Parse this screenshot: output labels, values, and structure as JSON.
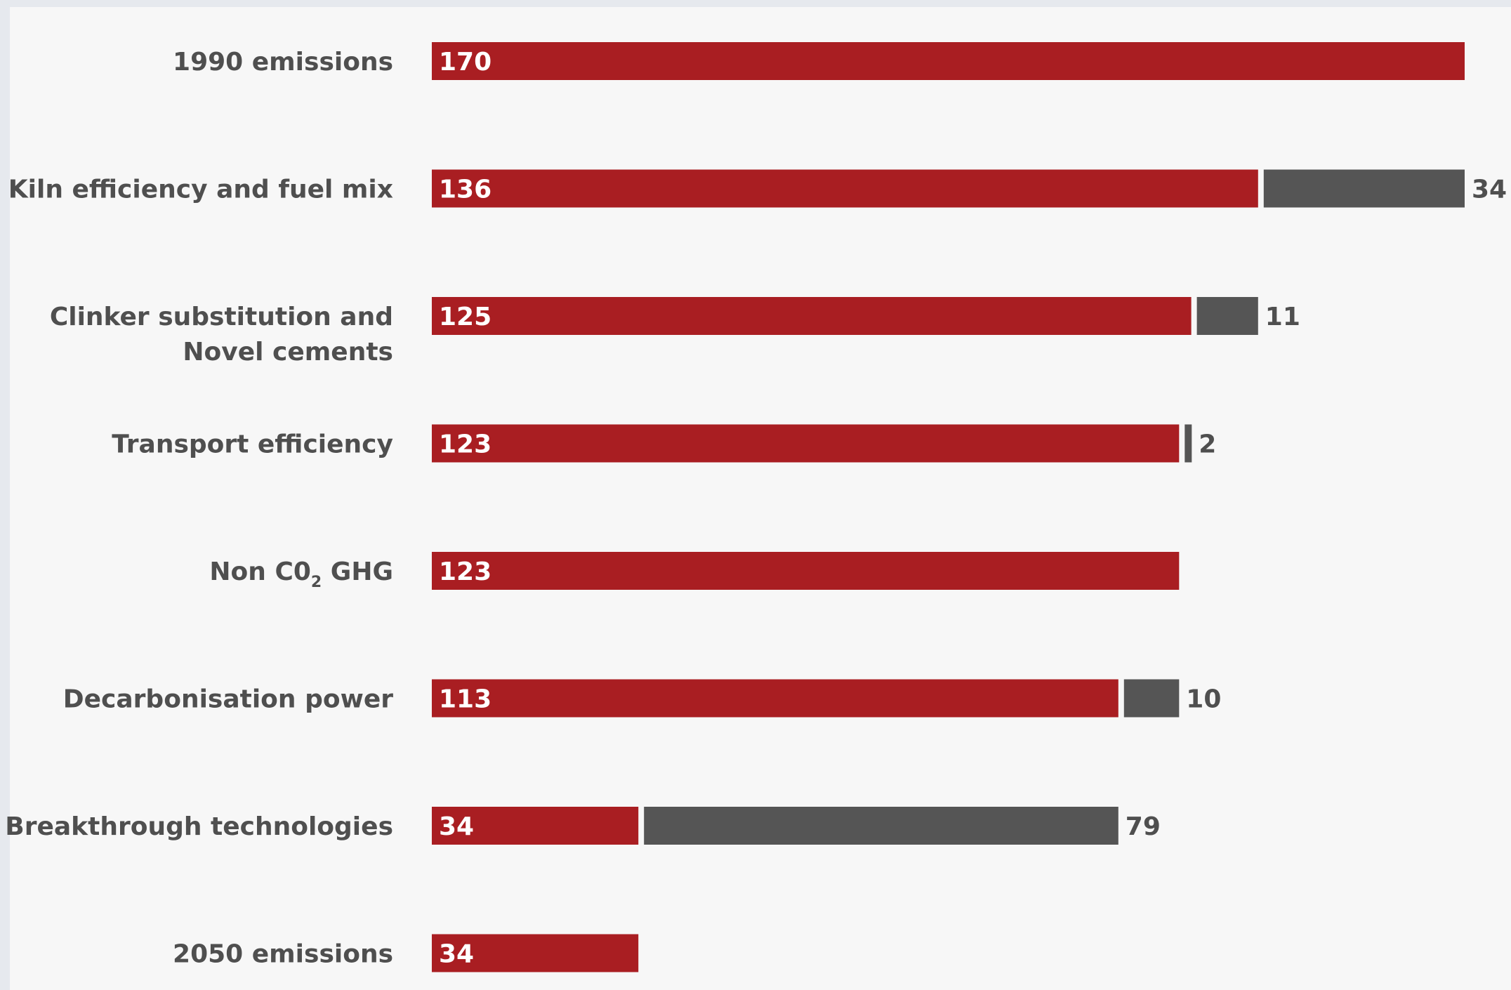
{
  "chart_data": {
    "type": "bar",
    "orientation": "horizontal",
    "stacked": true,
    "categories": [
      [
        "1990 emissions"
      ],
      [
        "Kiln efficiency and fuel mix"
      ],
      [
        "Clinker substitution and",
        "Novel cements"
      ],
      [
        "Transport efficiency"
      ],
      [
        "Non C0",
        "2",
        " GHG"
      ],
      [
        "Decarbonisation power"
      ],
      [
        "Breakthrough technologies"
      ],
      [
        "2050 emissions"
      ]
    ],
    "series": [
      {
        "values": [
          170,
          136,
          125,
          123,
          123,
          113,
          34,
          34
        ],
        "color": "#a91e22"
      },
      {
        "values": [
          0,
          34,
          11,
          2,
          0,
          10,
          79,
          0
        ],
        "color": "#555555"
      }
    ],
    "gap_labels": [
      "",
      "34",
      "11",
      "2",
      "",
      "10",
      "79",
      ""
    ],
    "xlim": [
      0,
      170
    ],
    "grid": false,
    "legend": "none"
  }
}
